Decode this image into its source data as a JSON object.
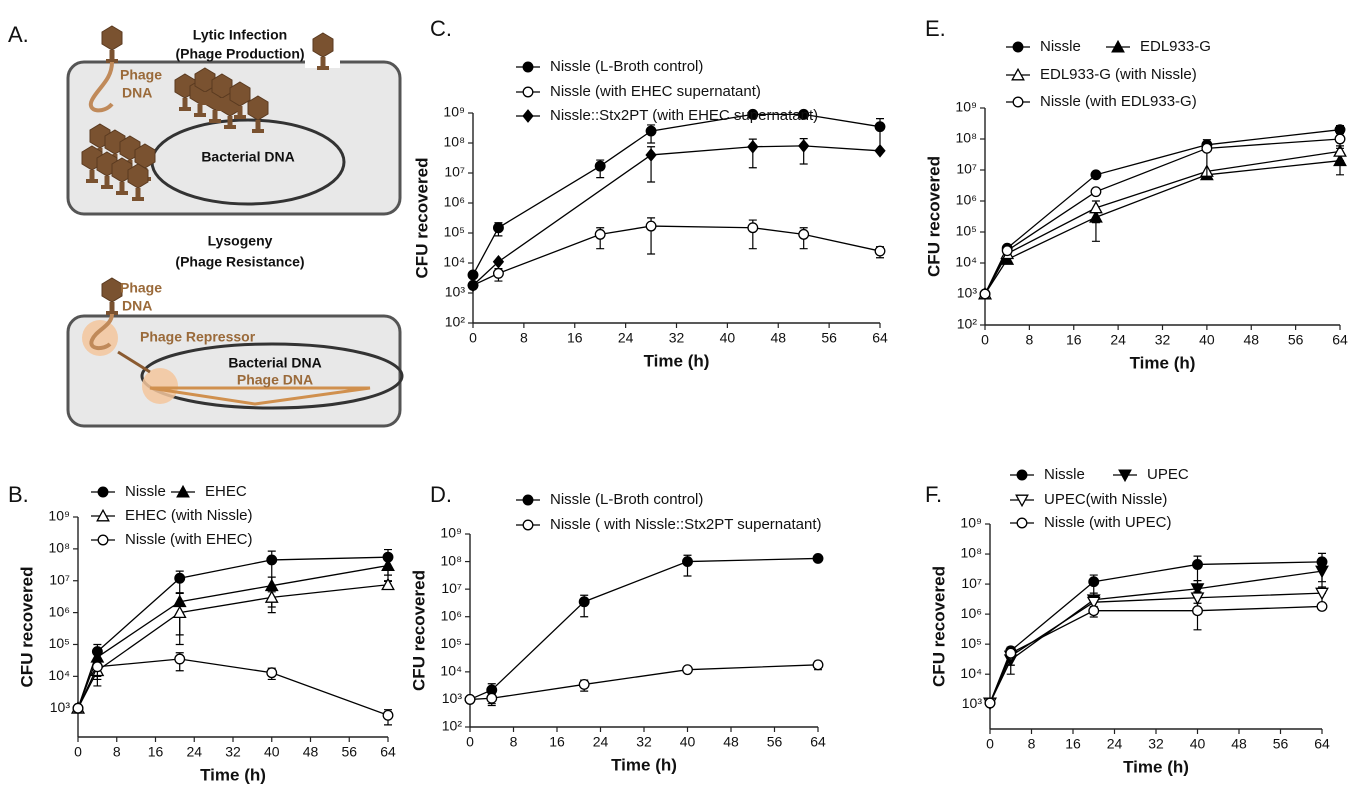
{
  "diagram": {
    "label": "A.",
    "lytic": {
      "title": "Lytic Infection",
      "subtitle": "(Phage Production)",
      "phage": "Phage",
      "dna": "DNA",
      "bacterial_dna": "Bacterial DNA"
    },
    "lysogeny": {
      "title": "Lysogeny",
      "subtitle": "(Phage Resistance)",
      "phage": "Phage",
      "dna": "DNA",
      "repressor": "Phage Repressor",
      "bacterial_dna": "Bacterial DNA",
      "phage_dna": "Phage DNA"
    }
  },
  "chart_data": [
    {
      "type": "line",
      "label": "B.",
      "xlabel": "Time (h)",
      "ylabel": "CFU recovered",
      "log_y": true,
      "xlim": [
        0,
        64
      ],
      "xticks": [
        0,
        8,
        16,
        24,
        32,
        40,
        48,
        56,
        64
      ],
      "ylim": [
        125,
        1000000000
      ],
      "yticks": [
        {
          "value": 1000,
          "label": "10³"
        },
        {
          "value": 10000,
          "label": "10⁴"
        },
        {
          "value": 100000,
          "label": "10⁵"
        },
        {
          "value": 1000000,
          "label": "10⁶"
        },
        {
          "value": 10000000,
          "label": "10⁷"
        },
        {
          "value": 100000000,
          "label": "10⁸"
        },
        {
          "value": 1000000000,
          "label": "10⁹"
        }
      ],
      "x": [
        0,
        4,
        21,
        40,
        64
      ],
      "series": [
        {
          "name": "Nissle",
          "color": "#000000",
          "marker": "filled-circle",
          "values": [
            1000,
            60000,
            12000000,
            45000000,
            55000000
          ],
          "errors": [
            null,
            40000,
            8000000,
            40000000,
            40000000
          ]
        },
        {
          "name": "EHEC",
          "color": "#000000",
          "marker": "filled-triangle",
          "values": [
            1000,
            40000,
            2200000,
            7000000,
            30000000
          ],
          "errors": [
            null,
            30000,
            2000000,
            6000000,
            20000000
          ]
        },
        {
          "name": "EHEC (with Nissle)",
          "color": "#000000",
          "marker": "open-triangle",
          "values": [
            1000,
            15000,
            1000000,
            3000000,
            7500000
          ],
          "errors": [
            null,
            10000,
            900000,
            1500000,
            2000000
          ]
        },
        {
          "name": "Nissle (with EHEC)",
          "color": "#000000",
          "marker": "open-circle",
          "values": [
            1000,
            20000,
            35000,
            13000,
            600
          ],
          "errors": [
            null,
            12000,
            20000,
            5000,
            300
          ]
        }
      ]
    },
    {
      "type": "line",
      "label": "C.",
      "xlabel": "Time (h)",
      "ylabel": "CFU recovered",
      "log_y": true,
      "xlim": [
        0,
        64
      ],
      "xticks": [
        0,
        8,
        16,
        24,
        32,
        40,
        48,
        56,
        64
      ],
      "ylim": [
        100,
        1000000000
      ],
      "yticks": [
        {
          "value": 100,
          "label": "10²"
        },
        {
          "value": 1000,
          "label": "10³"
        },
        {
          "value": 10000,
          "label": "10⁴"
        },
        {
          "value": 100000,
          "label": "10⁵"
        },
        {
          "value": 1000000,
          "label": "10⁶"
        },
        {
          "value": 10000000,
          "label": "10⁷"
        },
        {
          "value": 100000000,
          "label": "10⁸"
        },
        {
          "value": 1000000000,
          "label": "10⁹"
        }
      ],
      "x": [
        0,
        4,
        20,
        28,
        44,
        52,
        64
      ],
      "series": [
        {
          "name": "Nissle (L-Broth control)",
          "color": "#000000",
          "marker": "filled-circle",
          "values": [
            4000,
            150000,
            17000000,
            250000000,
            900000000,
            900000000,
            350000000
          ],
          "errors": [
            null,
            70000,
            10000000,
            150000000,
            null,
            200000000,
            300000000
          ]
        },
        {
          "name": "Nissle (with EHEC supernatant)",
          "color": "#000000",
          "marker": "open-circle",
          "values": [
            1800,
            4500,
            90000,
            170000,
            150000,
            90000,
            25000
          ],
          "errors": [
            null,
            2000,
            60000,
            150000,
            120000,
            60000,
            10000
          ]
        },
        {
          "name": "Nissle::Stx2PT (with EHEC supernatant)",
          "color": "#000000",
          "marker": "filled-diamond",
          "x": [
            0,
            4,
            28,
            44,
            52,
            64
          ],
          "values": [
            1800,
            11000,
            40000000,
            75000000,
            80000000,
            55000000
          ],
          "errors": [
            null,
            null,
            35000000,
            60000000,
            60000000,
            null
          ]
        }
      ]
    },
    {
      "type": "line",
      "label": "D.",
      "xlabel": "Time (h)",
      "ylabel": "CFU recovered",
      "log_y": true,
      "xlim": [
        0,
        64
      ],
      "xticks": [
        0,
        8,
        16,
        24,
        32,
        40,
        48,
        56,
        64
      ],
      "ylim": [
        100,
        1000000000
      ],
      "yticks": [
        {
          "value": 100,
          "label": "10²"
        },
        {
          "value": 1000,
          "label": "10³"
        },
        {
          "value": 10000,
          "label": "10⁴"
        },
        {
          "value": 100000,
          "label": "10⁵"
        },
        {
          "value": 1000000,
          "label": "10⁶"
        },
        {
          "value": 10000000,
          "label": "10⁷"
        },
        {
          "value": 100000000,
          "label": "10⁸"
        },
        {
          "value": 1000000000,
          "label": "10⁹"
        }
      ],
      "x": [
        0,
        4,
        21,
        40,
        64
      ],
      "series": [
        {
          "name": "Nissle (L-Broth control)",
          "color": "#000000",
          "marker": "filled-circle",
          "values": [
            1000,
            2200,
            3500000,
            100000000,
            130000000
          ],
          "errors": [
            null,
            1500,
            2500000,
            70000000,
            null
          ]
        },
        {
          "name": "Nissle ( with Nissle::Stx2PT supernatant)",
          "color": "#000000",
          "marker": "open-circle",
          "values": [
            1000,
            1100,
            3500,
            12000,
            18000
          ],
          "errors": [
            null,
            500,
            1500,
            null,
            6000
          ]
        }
      ]
    },
    {
      "type": "line",
      "label": "E.",
      "xlabel": "Time (h)",
      "ylabel": "CFU recovered",
      "log_y": true,
      "xlim": [
        0,
        64
      ],
      "xticks": [
        0,
        8,
        16,
        24,
        32,
        40,
        48,
        56,
        64
      ],
      "ylim": [
        100,
        1000000000
      ],
      "yticks": [
        {
          "value": 100,
          "label": "10²"
        },
        {
          "value": 1000,
          "label": "10³"
        },
        {
          "value": 10000,
          "label": "10⁴"
        },
        {
          "value": 100000,
          "label": "10⁵"
        },
        {
          "value": 1000000,
          "label": "10⁶"
        },
        {
          "value": 10000000,
          "label": "10⁷"
        },
        {
          "value": 100000000,
          "label": "10⁸"
        },
        {
          "value": 1000000000,
          "label": "10⁹"
        }
      ],
      "x": [
        0,
        4,
        20,
        40,
        64
      ],
      "series": [
        {
          "name": "Nissle",
          "color": "#000000",
          "marker": "filled-circle",
          "values": [
            1000,
            30000,
            7000000,
            65000000,
            200000000
          ],
          "errors": [
            null,
            null,
            null,
            15000000,
            70000000
          ]
        },
        {
          "name": "EDL933-G",
          "color": "#000000",
          "marker": "filled-triangle",
          "values": [
            1000,
            13000,
            300000,
            7000000,
            20000000
          ],
          "errors": [
            null,
            null,
            250000,
            null,
            13000000
          ]
        },
        {
          "name": "EDL933-G (with Nissle)",
          "color": "#000000",
          "marker": "open-triangle",
          "values": [
            1000,
            20000,
            600000,
            9000000,
            40000000
          ],
          "errors": [
            null,
            null,
            400000,
            null,
            20000000
          ]
        },
        {
          "name": "Nissle (with EDL933-G)",
          "color": "#000000",
          "marker": "open-circle",
          "values": [
            1000,
            25000,
            2000000,
            50000000,
            100000000
          ],
          "errors": [
            null,
            null,
            null,
            45000000,
            50000000
          ]
        }
      ]
    },
    {
      "type": "line",
      "label": "F.",
      "xlabel": "Time (h)",
      "ylabel": "CFU recovered",
      "log_y": true,
      "xlim": [
        0,
        64
      ],
      "xticks": [
        0,
        8,
        16,
        24,
        32,
        40,
        48,
        56,
        64
      ],
      "ylim": [
        150,
        1000000000
      ],
      "yticks": [
        {
          "value": 1000,
          "label": "10³"
        },
        {
          "value": 10000,
          "label": "10⁴"
        },
        {
          "value": 100000,
          "label": "10⁵"
        },
        {
          "value": 1000000,
          "label": "10⁶"
        },
        {
          "value": 10000000,
          "label": "10⁷"
        },
        {
          "value": 100000000,
          "label": "10⁸"
        },
        {
          "value": 1000000000,
          "label": "10⁹"
        }
      ],
      "x": [
        0,
        4,
        20,
        40,
        64
      ],
      "series": [
        {
          "name": "Nissle",
          "color": "#000000",
          "marker": "filled-circle",
          "values": [
            1100,
            60000,
            12000000,
            45000000,
            55000000
          ],
          "errors": [
            null,
            60000,
            8000000,
            40000000,
            50000000
          ]
        },
        {
          "name": "UPEC",
          "color": "#000000",
          "marker": "filled-inverted-triangle",
          "values": [
            1100,
            30000,
            3000000,
            7000000,
            27000000
          ],
          "errors": [
            null,
            20000,
            2000000,
            6000000,
            15000000
          ]
        },
        {
          "name": "UPEC(with Nissle)",
          "color": "#000000",
          "marker": "open-inverted-triangle",
          "values": [
            1100,
            40000,
            2500000,
            3500000,
            5000000
          ],
          "errors": [
            null,
            20000,
            null,
            2000000,
            3000000
          ]
        },
        {
          "name": "Nissle (with UPEC)",
          "color": "#000000",
          "marker": "open-circle",
          "values": [
            1100,
            50000,
            1300000,
            1300000,
            1800000
          ],
          "errors": [
            null,
            30000,
            500000,
            1000000,
            400000
          ]
        }
      ]
    }
  ]
}
